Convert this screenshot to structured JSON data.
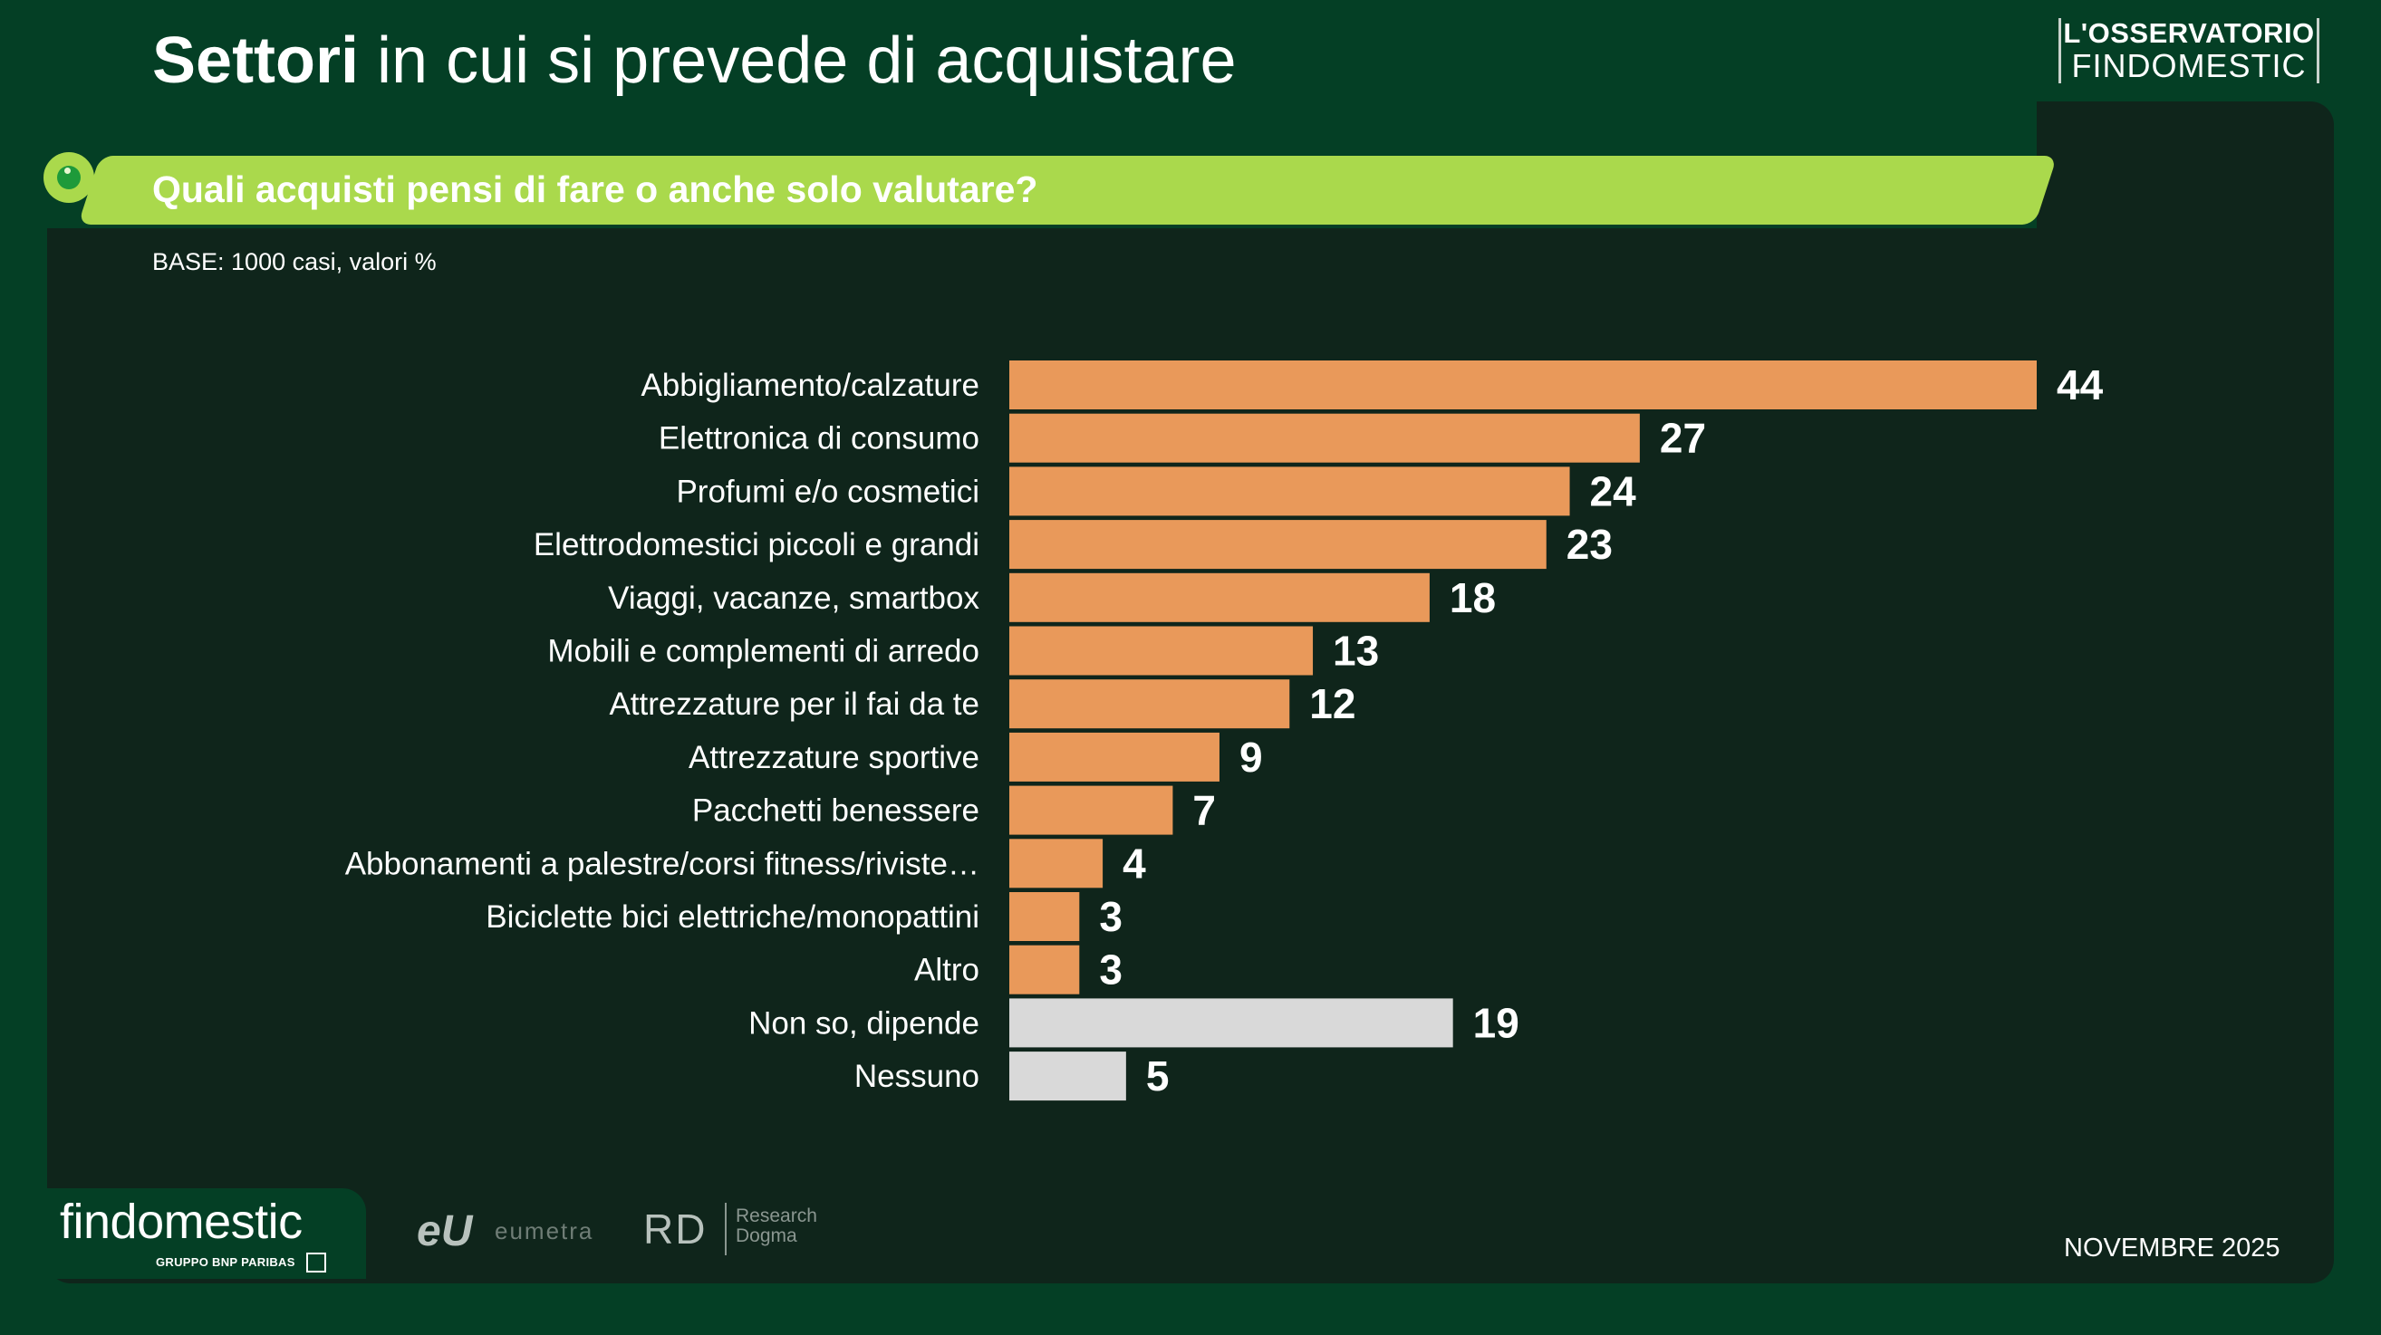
{
  "header": {
    "title_bold": "Settori",
    "title_rest": "in cui si prevede di acquistare",
    "brand_line1": "L'OSSERVATORIO",
    "brand_line2": "FINDOMESTIC"
  },
  "question": "Quali acquisti pensi di fare o anche solo valutare?",
  "base_note": "BASE: 1000 casi, valori %",
  "colors": {
    "accent_orange": "#e9995a",
    "neutral_grey": "#d9d9d9",
    "banner_green": "#aad94c",
    "background": "#043f25",
    "panel": "#0f251b"
  },
  "chart_data": {
    "type": "bar",
    "orientation": "horizontal",
    "title": "Quali acquisti pensi di fare o anche solo valutare?",
    "xlabel": "",
    "ylabel": "",
    "unit": "%",
    "xlim": [
      0,
      44
    ],
    "categories": [
      "Abbigliamento/calzature",
      "Elettronica di consumo",
      "Profumi e/o cosmetici",
      "Elettrodomestici piccoli e grandi",
      "Viaggi, vacanze, smartbox",
      "Mobili e complementi di arredo",
      "Attrezzature per il fai da te",
      "Attrezzature sportive",
      "Pacchetti benessere",
      "Abbonamenti a palestre/corsi fitness/riviste…",
      "Biciclette bici elettriche/monopattini",
      "Altro",
      "Non so, dipende",
      "Nessuno"
    ],
    "values": [
      44,
      27,
      24,
      23,
      18,
      13,
      12,
      9,
      7,
      4,
      3,
      3,
      19,
      5
    ],
    "bar_colors": [
      "orange",
      "orange",
      "orange",
      "orange",
      "orange",
      "orange",
      "orange",
      "orange",
      "orange",
      "orange",
      "orange",
      "orange",
      "grey",
      "grey"
    ]
  },
  "footer": {
    "findomestic": "findomestic",
    "findomestic_sub": "GRUPPO BNP PARIBAS",
    "eumetra_mark": "eU",
    "eumetra_text": "eumetra",
    "rd_mark": "RD",
    "rd_text_1": "Research",
    "rd_text_2": "Dogma",
    "date": "NOVEMBRE 2025"
  }
}
